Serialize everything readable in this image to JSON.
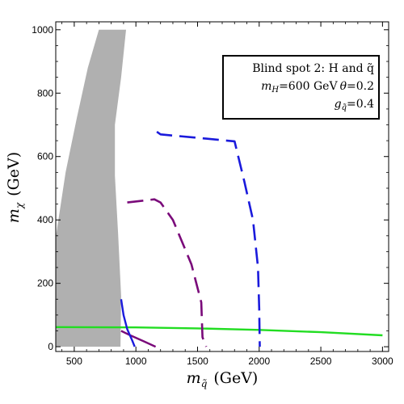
{
  "chart_data": {
    "type": "line",
    "title": "",
    "xlabel": {
      "symbol": "m",
      "subscript": "q̃",
      "rest": "(GeV)"
    },
    "ylabel": {
      "symbol": "m",
      "subscript": "χ",
      "rest": "(GeV)"
    },
    "xlim": [
      350,
      3050
    ],
    "ylim": [
      -15,
      1025
    ],
    "xticks": [
      500,
      1000,
      1500,
      2000,
      2500,
      3000
    ],
    "yticks": [
      0,
      200,
      400,
      600,
      800,
      1000
    ],
    "xtick_labels": [
      "500",
      "1000",
      "1500",
      "2000",
      "2500",
      "3000"
    ],
    "ytick_labels": [
      "0",
      "200",
      "400",
      "600",
      "800",
      "1000"
    ],
    "legend": {
      "position": "top-right",
      "line1": "Blind spot 2: H and q̃",
      "line2_a_sym": "m",
      "line2_a_sub": "H",
      "line2_a_val": "=600 GeV",
      "line2_b_sym": "θ",
      "line2_b_val": "=0.2",
      "line3_sym": "g",
      "line3_sub": "q̃",
      "line3_val": "=0.4"
    },
    "excluded_region": {
      "color": "#b0b0b0",
      "polygon": [
        [
          350,
          0
        ],
        [
          350,
          345
        ],
        [
          430,
          550
        ],
        [
          520,
          720
        ],
        [
          610,
          880
        ],
        [
          700,
          1000
        ],
        [
          920,
          1000
        ],
        [
          880,
          850
        ],
        [
          830,
          700
        ],
        [
          830,
          540
        ],
        [
          855,
          360
        ],
        [
          880,
          160
        ],
        [
          875,
          0
        ]
      ]
    },
    "series": [
      {
        "color": "#22dd22",
        "dash": "solid",
        "points": [
          [
            350,
            62
          ],
          [
            1000,
            61
          ],
          [
            1500,
            58
          ],
          [
            2000,
            53
          ],
          [
            2500,
            46
          ],
          [
            3000,
            36
          ]
        ]
      },
      {
        "color": "#1a1adc",
        "dash": "long-dash",
        "points": [
          [
            1170,
            678
          ],
          [
            1200,
            670
          ],
          [
            1800,
            648
          ],
          [
            1880,
            520
          ],
          [
            1950,
            400
          ],
          [
            1990,
            250
          ],
          [
            2000,
            120
          ],
          [
            2005,
            0
          ]
        ]
      },
      {
        "color": "#7a0a7a",
        "dash": "long-dash",
        "points": [
          [
            930,
            455
          ],
          [
            1150,
            465
          ],
          [
            1200,
            455
          ],
          [
            1300,
            400
          ],
          [
            1450,
            260
          ],
          [
            1530,
            140
          ],
          [
            1540,
            30
          ],
          [
            1570,
            0
          ]
        ]
      },
      {
        "color": "#7a0a7a",
        "dash": "solid",
        "points": [
          [
            880,
            50
          ],
          [
            960,
            35
          ],
          [
            1060,
            18
          ],
          [
            1160,
            0
          ]
        ]
      },
      {
        "color": "#1a1adc",
        "dash": "solid",
        "points": [
          [
            880,
            150
          ],
          [
            900,
            100
          ],
          [
            930,
            55
          ],
          [
            970,
            20
          ],
          [
            990,
            0
          ]
        ]
      }
    ]
  }
}
